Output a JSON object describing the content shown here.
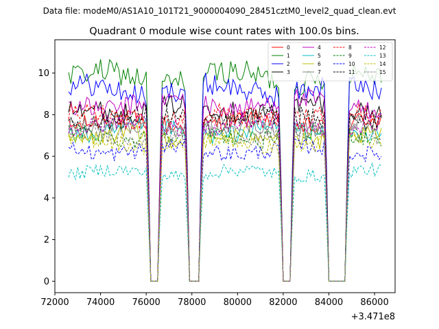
{
  "suptitle": "Data file: modeM0/AS1A10_101T21_9000004090_28451cztM0_level2_quad_clean.evt",
  "chart_data": {
    "type": "line",
    "title": "Quadrant 0 module wise count rates with 100.0s bins.",
    "xlabel": "",
    "ylabel": "",
    "x_offset_label": "+3.471e8",
    "xlim": [
      72000,
      86900
    ],
    "ylim": [
      -0.55,
      11.6
    ],
    "x_ticks": [
      72000,
      74000,
      76000,
      78000,
      80000,
      82000,
      84000,
      86000
    ],
    "x_tick_labels": [
      "72000",
      "74000",
      "76000",
      "78000",
      "80000",
      "82000",
      "84000",
      "86000"
    ],
    "y_ticks": [
      0,
      2,
      4,
      6,
      8,
      10
    ],
    "y_tick_labels": [
      "0",
      "2",
      "4",
      "6",
      "8",
      "10"
    ],
    "x_start": 72600,
    "x_end": 86300,
    "bin_width": 100,
    "gaps": [
      [
        76200,
        76500
      ],
      [
        77900,
        78300
      ],
      [
        82000,
        82300
      ],
      [
        84000,
        84700
      ]
    ],
    "legend_position": "upper right",
    "series": [
      {
        "name": "0",
        "color": "#ff0000",
        "style": "solid",
        "level": 7.6
      },
      {
        "name": "1",
        "color": "#008000",
        "style": "solid",
        "level": 9.8
      },
      {
        "name": "2",
        "color": "#0000ff",
        "style": "solid",
        "level": 9.2
      },
      {
        "name": "3",
        "color": "#000000",
        "style": "solid",
        "level": 8.3
      },
      {
        "name": "4",
        "color": "#bf00bf",
        "style": "solid",
        "level": 8.5
      },
      {
        "name": "5",
        "color": "#00bfbf",
        "style": "solid",
        "level": 7.2
      },
      {
        "name": "6",
        "color": "#bfbf00",
        "style": "solid",
        "level": 6.9
      },
      {
        "name": "7",
        "color": "#808080",
        "style": "solid",
        "level": 7.4
      },
      {
        "name": "8",
        "color": "#ff0000",
        "style": "dashed",
        "level": 7.9
      },
      {
        "name": "9",
        "color": "#008000",
        "style": "dashed",
        "level": 7.0
      },
      {
        "name": "10",
        "color": "#0000ff",
        "style": "dashed",
        "level": 6.3
      },
      {
        "name": "11",
        "color": "#000000",
        "style": "dashed",
        "level": 7.8
      },
      {
        "name": "12",
        "color": "#bf00bf",
        "style": "dashed",
        "level": 7.5
      },
      {
        "name": "13",
        "color": "#00bfbf",
        "style": "dashed",
        "level": 5.2
      },
      {
        "name": "14",
        "color": "#bfbf00",
        "style": "dashed",
        "level": 6.6
      },
      {
        "name": "15",
        "color": "#808080",
        "style": "dashed",
        "level": 7.1
      }
    ]
  }
}
